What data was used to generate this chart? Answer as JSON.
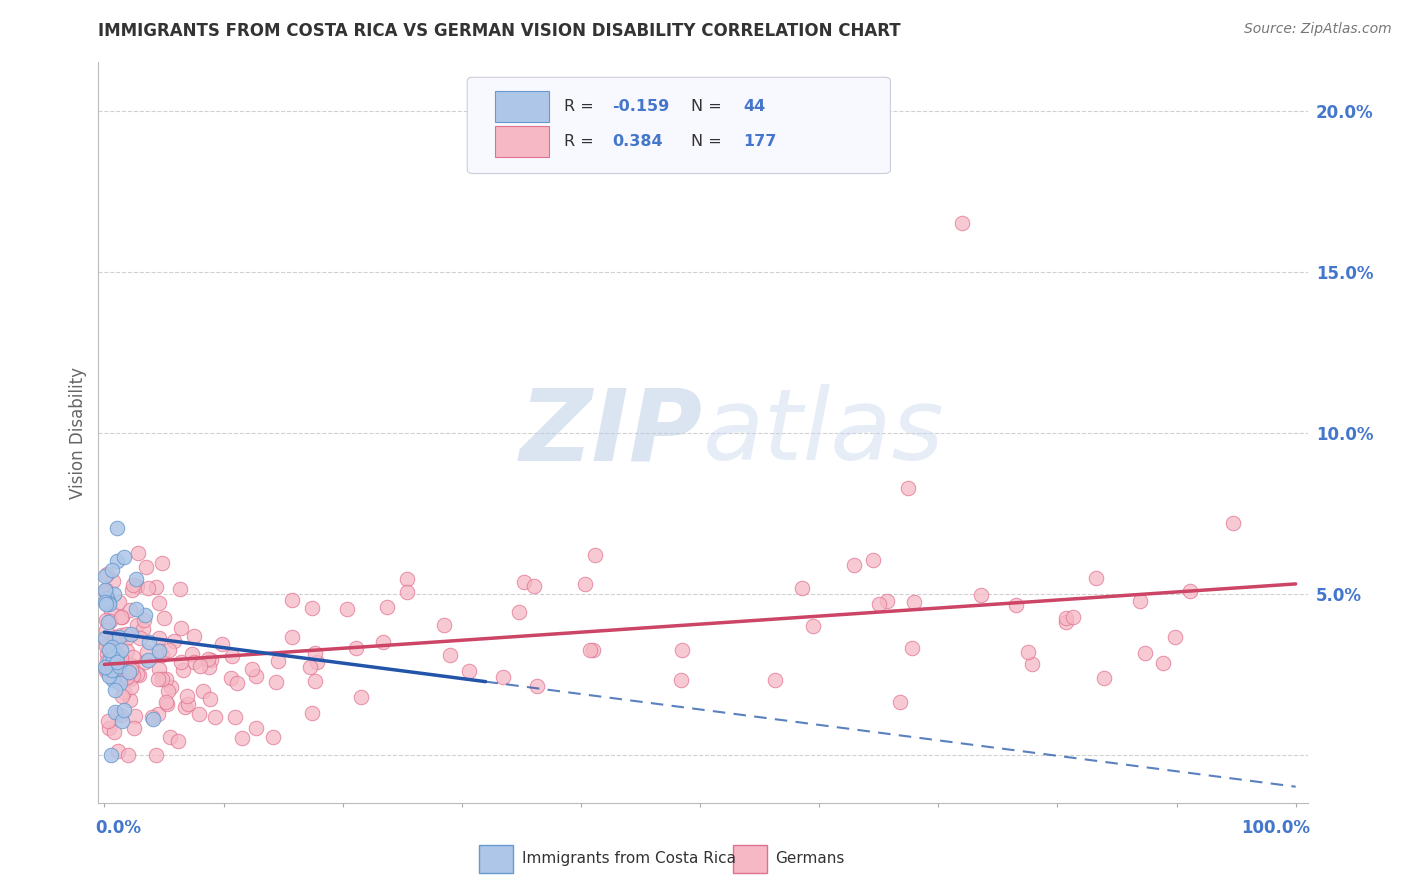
{
  "title": "IMMIGRANTS FROM COSTA RICA VS GERMAN VISION DISABILITY CORRELATION CHART",
  "source": "Source: ZipAtlas.com",
  "ylabel": "Vision Disability",
  "watermark": "ZIPatlas",
  "series1_label": "Immigrants from Costa Rica",
  "series2_label": "Germans",
  "series1_R": -0.159,
  "series1_N": 44,
  "series2_R": 0.384,
  "series2_N": 177,
  "series1_color": "#aec6e8",
  "series2_color": "#f5b8c4",
  "series1_edge": "#6699cc",
  "series2_edge": "#e07090",
  "trend1_color": "#2255aa",
  "trend2_color": "#cc4466",
  "ytick_vals": [
    0.0,
    0.05,
    0.1,
    0.15,
    0.2
  ],
  "ytick_labels": [
    "",
    "5.0%",
    "10.0%",
    "15.0%",
    "20.0%"
  ],
  "ylim": [
    -0.015,
    0.215
  ],
  "xlim": [
    -0.005,
    1.01
  ],
  "background_color": "#ffffff",
  "grid_color": "#cccccc",
  "title_color": "#333333",
  "axis_label_color": "#4477cc",
  "legend_R_color": "#4477cc",
  "legend_black_color": "#333333",
  "watermark_color": "#c8d8ef",
  "trend1_y0": 0.038,
  "trend1_y1": -0.01,
  "trend1_x0": 0.0,
  "trend1_x1": 1.0,
  "trend1_solid_end": 0.32,
  "trend2_y0": 0.028,
  "trend2_y1": 0.053,
  "trend2_x0": 0.0,
  "trend2_x1": 1.0
}
